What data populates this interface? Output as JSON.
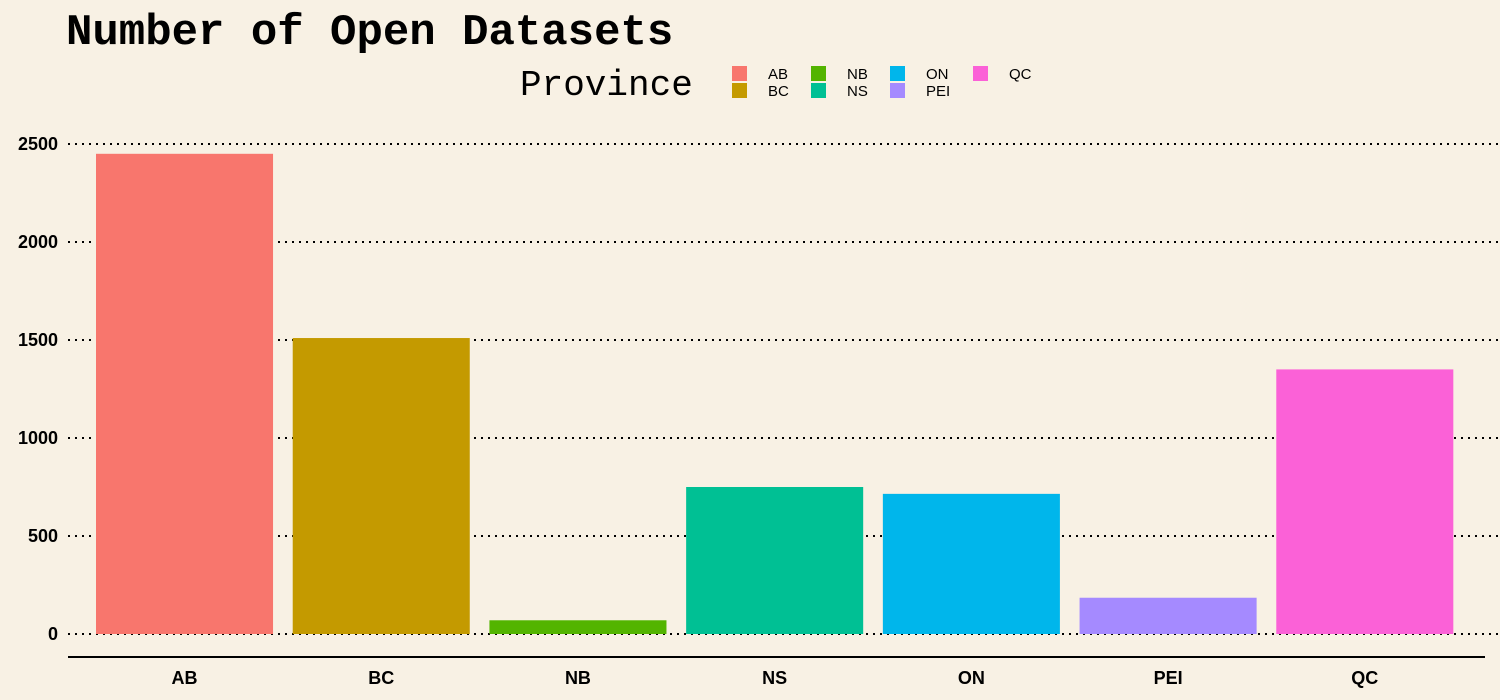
{
  "chart_data": {
    "type": "bar",
    "title": "Number of Open Datasets",
    "legend_title": "Province",
    "legend_position": "top",
    "categories": [
      "AB",
      "BC",
      "NB",
      "NS",
      "ON",
      "PEI",
      "QC"
    ],
    "values": [
      2450,
      1510,
      70,
      750,
      715,
      185,
      1350
    ],
    "colors": [
      "#f8766d",
      "#c49a00",
      "#53b400",
      "#00c094",
      "#00b6eb",
      "#a58aff",
      "#fb61d7"
    ],
    "yticks": [
      0,
      500,
      1000,
      1500,
      2000,
      2500
    ],
    "ylim": [
      -60,
      2500
    ],
    "grid": "horizontal-dotted",
    "xlabel": "",
    "ylabel": ""
  }
}
